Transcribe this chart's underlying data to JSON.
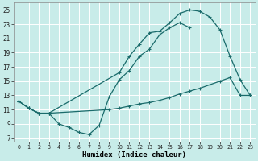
{
  "bg_color": "#c8ece9",
  "grid_color": "#b0d8d4",
  "line_color": "#1a6b6b",
  "xlabel": "Humidex (Indice chaleur)",
  "xlim": [
    -0.5,
    23.5
  ],
  "ylim": [
    6.5,
    26
  ],
  "xticks": [
    0,
    1,
    2,
    3,
    4,
    5,
    6,
    7,
    8,
    9,
    10,
    11,
    12,
    13,
    14,
    15,
    16,
    17,
    18,
    19,
    20,
    21,
    22,
    23
  ],
  "yticks": [
    7,
    9,
    11,
    13,
    15,
    17,
    19,
    21,
    23,
    25
  ],
  "line1_x": [
    0,
    1,
    2,
    3,
    4,
    5,
    6,
    7,
    8,
    9,
    10,
    11,
    12,
    13,
    14,
    15,
    16,
    17
  ],
  "line1_y": [
    12.2,
    11.2,
    10.5,
    10.5,
    9.0,
    8.5,
    7.8,
    7.5,
    8.8,
    12.8,
    15.2,
    16.5,
    18.5,
    19.5,
    21.5,
    22.5,
    23.2,
    22.5
  ],
  "line2_x": [
    0,
    1,
    2,
    3,
    9,
    10,
    11,
    12,
    13,
    14,
    15,
    16,
    17,
    18,
    19,
    20,
    21,
    22,
    23
  ],
  "line2_y": [
    12.2,
    11.2,
    10.5,
    10.5,
    11.0,
    11.2,
    11.5,
    11.8,
    12.0,
    12.3,
    12.7,
    13.2,
    13.6,
    14.0,
    14.5,
    15.0,
    15.5,
    13.0,
    13.0
  ],
  "line3_x": [
    0,
    1,
    2,
    3,
    10,
    11,
    12,
    13,
    14,
    15,
    16,
    17,
    18,
    19,
    20,
    21,
    22,
    23
  ],
  "line3_y": [
    12.2,
    11.2,
    10.5,
    10.5,
    16.2,
    18.5,
    20.2,
    21.8,
    22.0,
    23.2,
    24.5,
    25.0,
    24.8,
    24.0,
    22.2,
    18.5,
    15.2,
    13.0
  ]
}
